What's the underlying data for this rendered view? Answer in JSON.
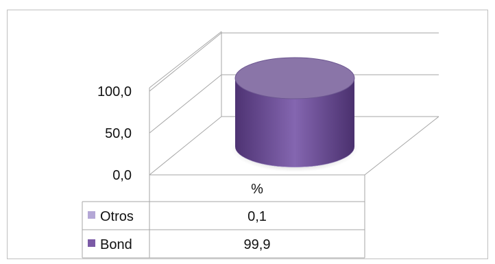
{
  "chart_data": {
    "type": "bar",
    "style": "3d-cylinder-stacked",
    "categories": [
      "%"
    ],
    "series": [
      {
        "name": "Otros",
        "values": [
          0.1
        ],
        "color": "#b4a7d6",
        "value_labels": [
          "0,1"
        ]
      },
      {
        "name": "Bond",
        "values": [
          99.9
        ],
        "color": "#7b5aa6",
        "value_labels": [
          "99,9"
        ]
      }
    ],
    "y_ticks": [
      "0,0",
      "50,0",
      "100,0"
    ],
    "y_tick_values": [
      0,
      50,
      100
    ],
    "ylim": [
      0,
      150
    ],
    "grid": true,
    "legend_placement": "data-table",
    "title": "",
    "xlabel": "",
    "ylabel": ""
  }
}
